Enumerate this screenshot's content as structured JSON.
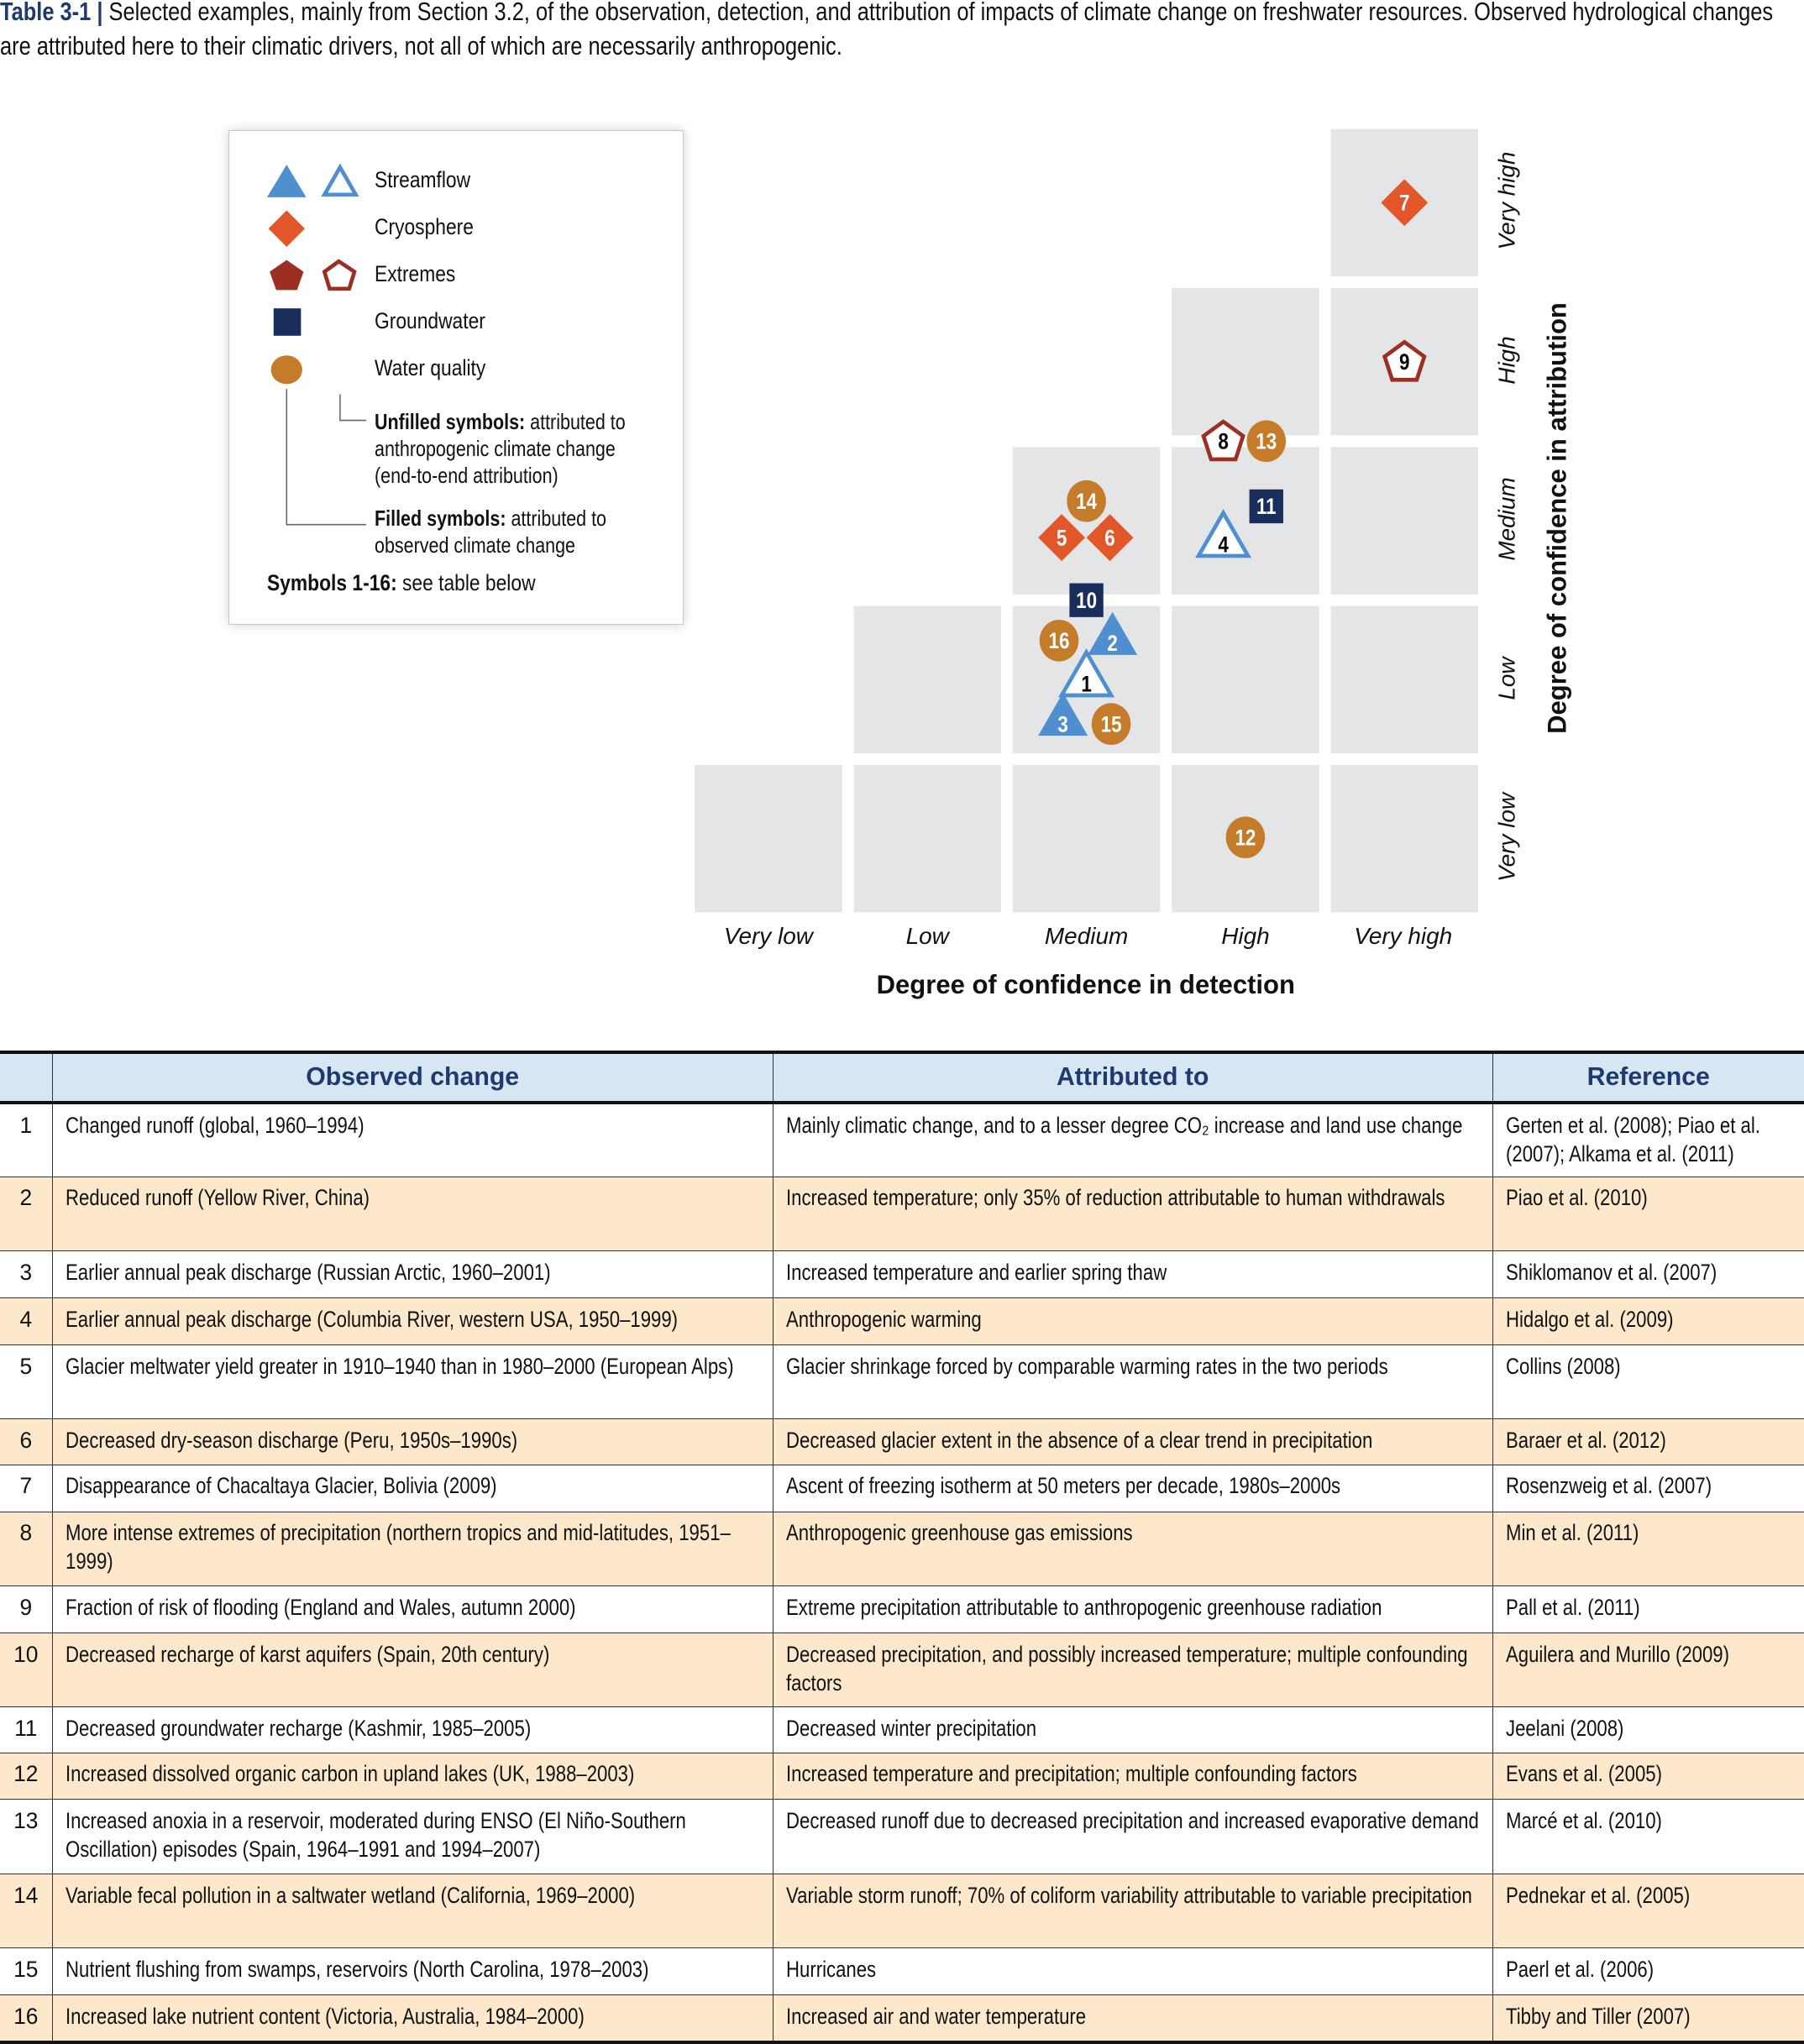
{
  "caption": {
    "label": "Table 3-1 |",
    "text": "Selected examples, mainly from Section 3.2, of the observation, detection, and attribution of impacts of climate change on freshwater resources. Observed hydrological changes are attributed here to their climatic drivers, not all of which are necessarily anthropogenic."
  },
  "legend": {
    "items": [
      {
        "label": "Streamflow",
        "icon": "triangle-icon"
      },
      {
        "label": "Cryosphere",
        "icon": "diamond-icon"
      },
      {
        "label": "Extremes",
        "icon": "pentagon-icon"
      },
      {
        "label": "Groundwater",
        "icon": "square-icon"
      },
      {
        "label": "Water quality",
        "icon": "circle-icon"
      }
    ],
    "unfilled_bold": "Unfilled symbols:",
    "unfilled_text": " attributed to anthropogenic climate change (end-to-end attribution)",
    "filled_bold": "Filled symbols:",
    "filled_text": " attributed to observed climate change",
    "symbols_bold": "Symbols 1-16:",
    "symbols_text": " see table below"
  },
  "chart_data": {
    "type": "scatter",
    "xlabel": "Degree of confidence in detection",
    "ylabel": "Degree of confidence in attribution",
    "categories": [
      "Very low",
      "Low",
      "Medium",
      "High",
      "Very high"
    ],
    "colors": {
      "streamflow": "#4f8fcf",
      "cryosphere": "#e2572a",
      "extremes": "#9b2f22",
      "groundwater": "#1a2e5c",
      "water_quality": "#c47c2b",
      "cell": "#e4e5e6"
    },
    "points": [
      {
        "id": "1",
        "category": "streamflow",
        "filled": false,
        "detection": "Medium",
        "attribution": "Low"
      },
      {
        "id": "2",
        "category": "streamflow",
        "filled": true,
        "detection": "Medium",
        "attribution": "Low"
      },
      {
        "id": "3",
        "category": "streamflow",
        "filled": true,
        "detection": "Medium",
        "attribution": "Low"
      },
      {
        "id": "4",
        "category": "streamflow",
        "filled": false,
        "detection": "High",
        "attribution": "Medium"
      },
      {
        "id": "5",
        "category": "cryosphere",
        "filled": true,
        "detection": "Medium",
        "attribution": "Medium"
      },
      {
        "id": "6",
        "category": "cryosphere",
        "filled": true,
        "detection": "Medium",
        "attribution": "Medium"
      },
      {
        "id": "7",
        "category": "cryosphere",
        "filled": true,
        "detection": "Very high",
        "attribution": "Very high"
      },
      {
        "id": "8",
        "category": "extremes",
        "filled": false,
        "detection": "High",
        "attribution": "Medium–High"
      },
      {
        "id": "9",
        "category": "extremes",
        "filled": false,
        "detection": "Very high",
        "attribution": "High"
      },
      {
        "id": "10",
        "category": "groundwater",
        "filled": true,
        "detection": "Medium",
        "attribution": "Low–Medium"
      },
      {
        "id": "11",
        "category": "groundwater",
        "filled": true,
        "detection": "High",
        "attribution": "Medium"
      },
      {
        "id": "12",
        "category": "water_quality",
        "filled": true,
        "detection": "High",
        "attribution": "Very low"
      },
      {
        "id": "13",
        "category": "water_quality",
        "filled": true,
        "detection": "High",
        "attribution": "Medium–High"
      },
      {
        "id": "14",
        "category": "water_quality",
        "filled": true,
        "detection": "Medium",
        "attribution": "Medium"
      },
      {
        "id": "15",
        "category": "water_quality",
        "filled": true,
        "detection": "Medium",
        "attribution": "Low"
      },
      {
        "id": "16",
        "category": "water_quality",
        "filled": true,
        "detection": "Medium",
        "attribution": "Low"
      }
    ]
  },
  "table": {
    "headers": [
      "",
      "Observed change",
      "Attributed to",
      "Reference"
    ],
    "rows": [
      {
        "n": "1",
        "observed": "Changed runoff (global, 1960–1994)",
        "attributed": "Mainly climatic change, and to a lesser degree CO₂ increase and land use change",
        "reference": "Gerten et al. (2008); Piao et al. (2007); Alkama et al. (2011)"
      },
      {
        "n": "2",
        "observed": "Reduced runoff (Yellow River, China)",
        "attributed": "Increased temperature; only 35% of reduction attributable to human withdrawals",
        "reference": "Piao et al. (2010)"
      },
      {
        "n": "3",
        "observed": "Earlier annual peak discharge (Russian Arctic, 1960–2001)",
        "attributed": "Increased temperature and earlier spring thaw",
        "reference": "Shiklomanov et al. (2007)"
      },
      {
        "n": "4",
        "observed": "Earlier annual peak discharge (Columbia River, western USA, 1950–1999)",
        "attributed": "Anthropogenic warming",
        "reference": "Hidalgo et al. (2009)"
      },
      {
        "n": "5",
        "observed": "Glacier meltwater yield greater in 1910–1940 than in 1980–2000 (European Alps)",
        "attributed": "Glacier shrinkage forced by comparable warming rates in the two periods",
        "reference": "Collins (2008)"
      },
      {
        "n": "6",
        "observed": "Decreased dry-season discharge (Peru, 1950s–1990s)",
        "attributed": "Decreased glacier extent in the absence of a clear trend in precipitation",
        "reference": "Baraer et al. (2012)"
      },
      {
        "n": "7",
        "observed": "Disappearance of Chacaltaya Glacier, Bolivia (2009)",
        "attributed": "Ascent of freezing isotherm at 50 meters per decade, 1980s–2000s",
        "reference": "Rosenzweig et al. (2007)"
      },
      {
        "n": "8",
        "observed": "More intense extremes of precipitation (northern tropics and mid-latitudes, 1951–1999)",
        "attributed": "Anthropogenic greenhouse gas emissions",
        "reference": "Min et al. (2011)"
      },
      {
        "n": "9",
        "observed": "Fraction of risk of flooding (England and Wales, autumn 2000)",
        "attributed": "Extreme precipitation attributable to anthropogenic greenhouse radiation",
        "reference": "Pall et al. (2011)"
      },
      {
        "n": "10",
        "observed": "Decreased recharge of karst aquifers (Spain, 20th century)",
        "attributed": "Decreased precipitation, and possibly increased temperature; multiple confounding factors",
        "reference": "Aguilera and Murillo (2009)"
      },
      {
        "n": "11",
        "observed": "Decreased groundwater recharge (Kashmir, 1985–2005)",
        "attributed": "Decreased winter precipitation",
        "reference": "Jeelani (2008)"
      },
      {
        "n": "12",
        "observed": "Increased dissolved organic carbon in upland lakes (UK, 1988–2003)",
        "attributed": "Increased temperature and precipitation; multiple confounding factors",
        "reference": "Evans et al. (2005)"
      },
      {
        "n": "13",
        "observed": "Increased anoxia in a reservoir, moderated during ENSO (El Niño-Southern Oscillation) episodes (Spain, 1964–1991 and 1994–2007)",
        "attributed": "Decreased runoff due to decreased precipitation and increased evaporative demand",
        "reference": "Marcé et al. (2010)"
      },
      {
        "n": "14",
        "observed": "Variable fecal pollution in a saltwater wetland (California, 1969–2000)",
        "attributed": "Variable storm runoff; 70% of coliform variability attributable to variable precipitation",
        "reference": "Pednekar et al. (2005)"
      },
      {
        "n": "15",
        "observed": "Nutrient flushing from swamps, reservoirs (North Carolina, 1978–2003)",
        "attributed": "Hurricanes",
        "reference": "Paerl et al. (2006)"
      },
      {
        "n": "16",
        "observed": "Increased lake nutrient content (Victoria, Australia, 1984–2000)",
        "attributed": "Increased air and water temperature",
        "reference": "Tibby and Tiller (2007)"
      }
    ]
  }
}
